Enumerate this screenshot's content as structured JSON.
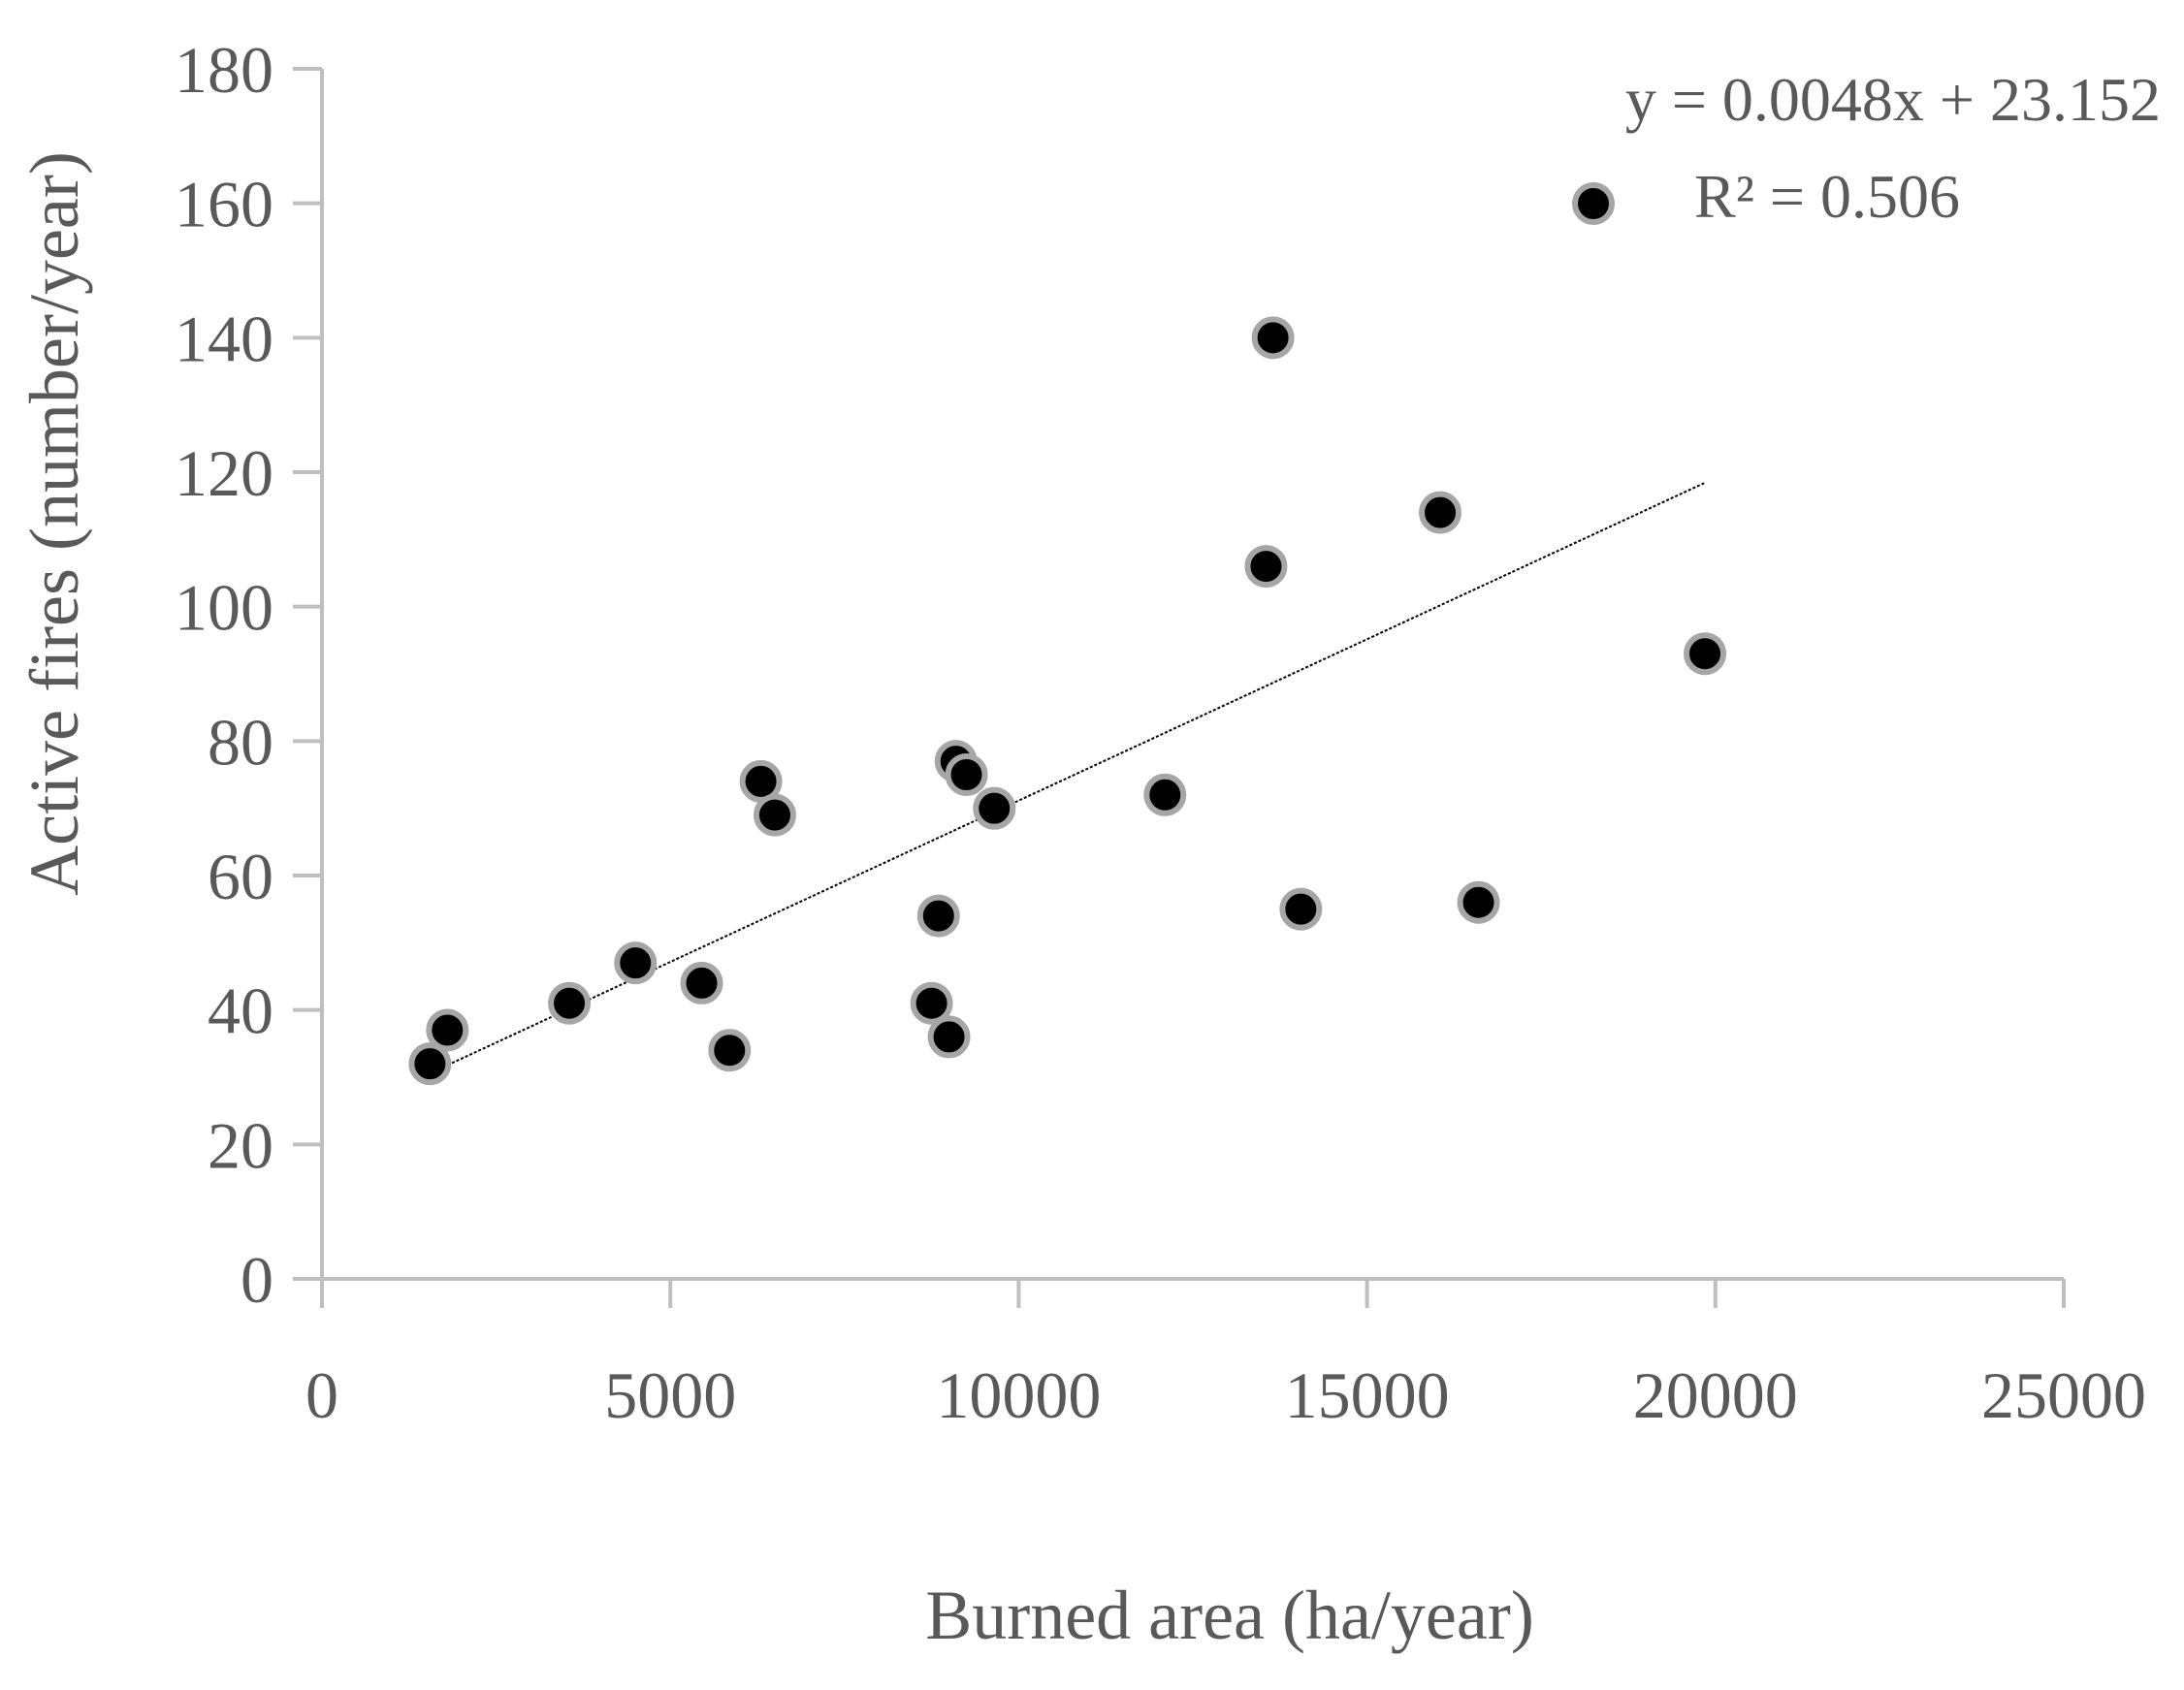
{
  "chart_data": {
    "type": "scatter",
    "title": "",
    "xlabel": "Burned area (ha/year)",
    "ylabel": "Active fires (number/year)",
    "xlim": [
      0,
      25000
    ],
    "ylim": [
      0,
      180
    ],
    "x_ticks": [
      0,
      5000,
      10000,
      15000,
      20000,
      25000
    ],
    "y_ticks": [
      0,
      20,
      40,
      60,
      80,
      100,
      120,
      140,
      160,
      180
    ],
    "grid": false,
    "legend": "none",
    "series": [
      {
        "marker_color": "#000000",
        "marker_edge_color": "#a6a6a6",
        "points": [
          {
            "x": 1550,
            "y": 32
          },
          {
            "x": 1800,
            "y": 37
          },
          {
            "x": 3550,
            "y": 41
          },
          {
            "x": 4500,
            "y": 47
          },
          {
            "x": 5450,
            "y": 44
          },
          {
            "x": 5850,
            "y": 34
          },
          {
            "x": 6300,
            "y": 74
          },
          {
            "x": 6500,
            "y": 69
          },
          {
            "x": 8750,
            "y": 41
          },
          {
            "x": 8850,
            "y": 54
          },
          {
            "x": 9000,
            "y": 36
          },
          {
            "x": 9100,
            "y": 77
          },
          {
            "x": 9250,
            "y": 75
          },
          {
            "x": 9650,
            "y": 70
          },
          {
            "x": 12100,
            "y": 72
          },
          {
            "x": 13550,
            "y": 106
          },
          {
            "x": 13650,
            "y": 140
          },
          {
            "x": 14050,
            "y": 55
          },
          {
            "x": 16050,
            "y": 114
          },
          {
            "x": 16600,
            "y": 56
          },
          {
            "x": 19850,
            "y": 93
          }
        ]
      }
    ],
    "trendline": {
      "type": "linear",
      "slope": 0.0048,
      "intercept": 23.152,
      "x_range": [
        1550,
        19850
      ],
      "color": "#000000"
    },
    "annotations": {
      "equation": "y = 0.0048x + 23.152",
      "r_squared": "R² = 0.506"
    },
    "axis_color": "#bfbfbf",
    "text_color": "#595959"
  }
}
